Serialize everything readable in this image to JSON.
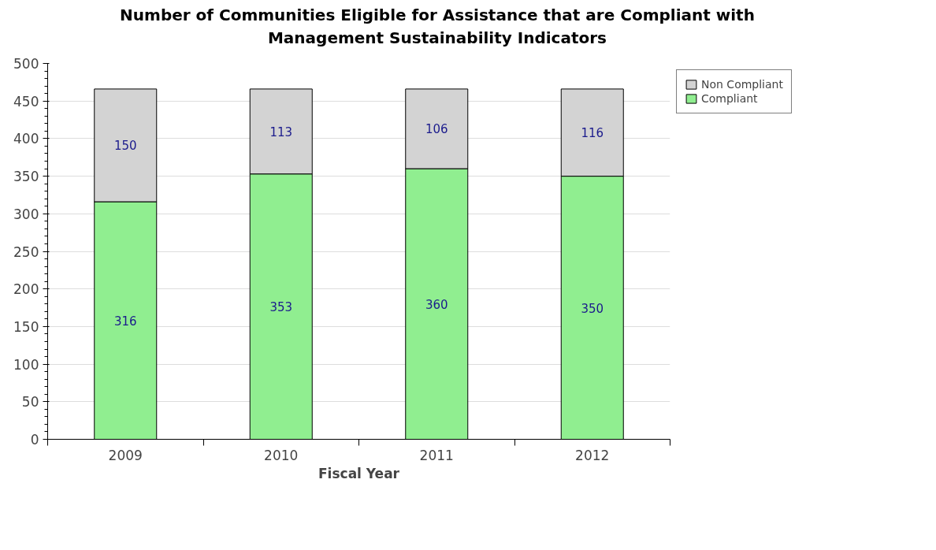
{
  "chart_data": {
    "type": "bar",
    "title": "Number of Communities Eligible for Assistance that are Compliant with\nManagement Sustainability Indicators",
    "xlabel": "Fiscal Year",
    "categories": [
      "2009",
      "2010",
      "2011",
      "2012"
    ],
    "stacked": true,
    "series": [
      {
        "name": "Compliant",
        "color": "#90ee90",
        "values": [
          316,
          353,
          360,
          350
        ]
      },
      {
        "name": "Non Compliant",
        "color": "#d3d3d3",
        "values": [
          150,
          113,
          106,
          116
        ]
      }
    ],
    "ylim": [
      0,
      500
    ],
    "yticks": [
      0,
      50,
      100,
      150,
      200,
      250,
      300,
      350,
      400,
      450,
      500
    ],
    "grid": "y",
    "legend": "top right",
    "data_labels": true
  }
}
